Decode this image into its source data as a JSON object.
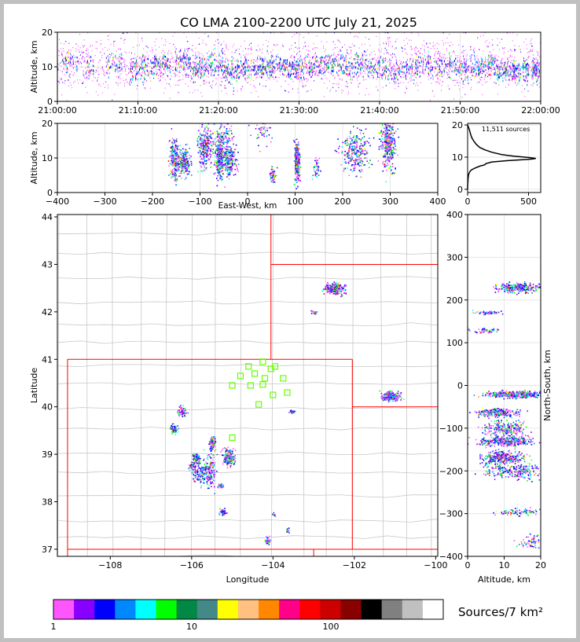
{
  "title": "CO LMA 2100-2200 UTC July 21, 2025",
  "colors": {
    "frame": "#c0c0c0",
    "border": "#ff0000",
    "county": "#c8c8c8",
    "grid": "#e6e6e6",
    "station": "#66ff00"
  },
  "chart_data": [
    {
      "id": "time_height",
      "type": "scatter",
      "xlabel": "",
      "ylabel": "Altitude, km",
      "x_ticks": [
        "21:00:00",
        "21:10:00",
        "21:20:00",
        "21:30:00",
        "21:40:00",
        "21:50:00",
        "22:00:00"
      ],
      "y_ticks": [
        0,
        10,
        20
      ],
      "xlim": [
        "21:00:00",
        "22:00:00"
      ],
      "ylim": [
        0,
        20
      ],
      "bursts": [
        {
          "t": 1.5,
          "z": 12,
          "w": 2,
          "n": 40
        },
        {
          "t": 4.0,
          "z": 10,
          "w": 1,
          "n": 30
        },
        {
          "t": 7.0,
          "z": 11,
          "w": 2,
          "n": 50
        },
        {
          "t": 9.5,
          "z": 9,
          "w": 1,
          "n": 40
        },
        {
          "t": 11.0,
          "z": 10,
          "w": 2,
          "n": 60
        },
        {
          "t": 13.0,
          "z": 11,
          "w": 2,
          "n": 70
        },
        {
          "t": 15.5,
          "z": 12,
          "w": 2,
          "n": 80
        },
        {
          "t": 17.5,
          "z": 10,
          "w": 2,
          "n": 80
        },
        {
          "t": 19.5,
          "z": 11,
          "w": 2,
          "n": 70
        },
        {
          "t": 21.5,
          "z": 9,
          "w": 2,
          "n": 90
        },
        {
          "t": 23.5,
          "z": 10,
          "w": 2,
          "n": 70
        },
        {
          "t": 25.5,
          "z": 10,
          "w": 2,
          "n": 80
        },
        {
          "t": 27.5,
          "z": 11,
          "w": 2,
          "n": 80
        },
        {
          "t": 29.5,
          "z": 10,
          "w": 2,
          "n": 90
        },
        {
          "t": 31.5,
          "z": 10,
          "w": 2,
          "n": 70
        },
        {
          "t": 33.5,
          "z": 11,
          "w": 2,
          "n": 70
        },
        {
          "t": 35.5,
          "z": 10,
          "w": 2,
          "n": 60
        },
        {
          "t": 37.5,
          "z": 11,
          "w": 2,
          "n": 60
        },
        {
          "t": 39.5,
          "z": 10,
          "w": 2,
          "n": 60
        },
        {
          "t": 41.5,
          "z": 9,
          "w": 2,
          "n": 50
        },
        {
          "t": 43.5,
          "z": 10,
          "w": 2,
          "n": 50
        },
        {
          "t": 45.5,
          "z": 11,
          "w": 2,
          "n": 60
        },
        {
          "t": 47.5,
          "z": 10,
          "w": 2,
          "n": 40
        },
        {
          "t": 49.5,
          "z": 10,
          "w": 2,
          "n": 60
        },
        {
          "t": 51.5,
          "z": 10,
          "w": 2,
          "n": 70
        },
        {
          "t": 53.5,
          "z": 11,
          "w": 2,
          "n": 80
        },
        {
          "t": 55.5,
          "z": 9,
          "w": 2,
          "n": 90
        },
        {
          "t": 57.5,
          "z": 9,
          "w": 2,
          "n": 100
        },
        {
          "t": 59.3,
          "z": 9,
          "w": 1,
          "n": 80
        }
      ]
    },
    {
      "id": "ew_height",
      "type": "scatter",
      "xlabel": "East-West, km",
      "ylabel": "Altitude, km",
      "x_ticks": [
        -400,
        -300,
        -200,
        -100,
        0,
        100,
        200,
        300,
        400
      ],
      "y_ticks": [
        0,
        10,
        20
      ],
      "xlim": [
        -400,
        400
      ],
      "ylim": [
        0,
        20
      ],
      "clusters": [
        {
          "x": -155,
          "z": 10,
          "sx": 5,
          "sz": 3,
          "n": 70
        },
        {
          "x": -135,
          "z": 9,
          "sx": 7,
          "sz": 2,
          "n": 70
        },
        {
          "x": -90,
          "z": 13,
          "sx": 8,
          "sz": 3,
          "n": 80
        },
        {
          "x": -60,
          "z": 10,
          "sx": 5,
          "sz": 3,
          "n": 90
        },
        {
          "x": -38,
          "z": 9,
          "sx": 7,
          "sz": 2,
          "n": 70
        },
        {
          "x": -50,
          "z": 16,
          "sx": 10,
          "sz": 3,
          "n": 40
        },
        {
          "x": 52,
          "z": 5,
          "sx": 3,
          "sz": 1,
          "n": 20
        },
        {
          "x": 103,
          "z": 9,
          "sx": 3,
          "sz": 3,
          "n": 80
        },
        {
          "x": 225,
          "z": 12,
          "sx": 15,
          "sz": 3,
          "n": 90
        },
        {
          "x": 295,
          "z": 14,
          "sx": 8,
          "sz": 4,
          "n": 110
        },
        {
          "x": 145,
          "z": 7,
          "sx": 4,
          "sz": 1.5,
          "n": 15
        },
        {
          "x": 30,
          "z": 18,
          "sx": 10,
          "sz": 2,
          "n": 15
        }
      ]
    },
    {
      "id": "altitude_histogram",
      "type": "line",
      "annotation": "11,511 sources",
      "x_ticks": [
        0,
        500
      ],
      "y_ticks": [
        0,
        10,
        20
      ],
      "xlim": [
        0,
        600
      ],
      "ylim": [
        -1,
        20.5
      ],
      "profile": [
        [
          0,
          20
        ],
        [
          5,
          19.5
        ],
        [
          15,
          18.5
        ],
        [
          25,
          17
        ],
        [
          35,
          16
        ],
        [
          50,
          15
        ],
        [
          70,
          14
        ],
        [
          100,
          13
        ],
        [
          140,
          12.3
        ],
        [
          200,
          11.5
        ],
        [
          280,
          10.8
        ],
        [
          380,
          10.3
        ],
        [
          500,
          9.9
        ],
        [
          560,
          9.6
        ],
        [
          530,
          9.4
        ],
        [
          450,
          9.2
        ],
        [
          320,
          8.9
        ],
        [
          200,
          8.5
        ],
        [
          150,
          8.0
        ],
        [
          140,
          7.6
        ],
        [
          100,
          7.2
        ],
        [
          60,
          6.6
        ],
        [
          30,
          6.0
        ],
        [
          15,
          5.3
        ],
        [
          8,
          4.5
        ],
        [
          4,
          3.5
        ],
        [
          2,
          2.0
        ],
        [
          0,
          1.0
        ],
        [
          0,
          0
        ]
      ]
    },
    {
      "id": "plan_view",
      "type": "scatter",
      "xlabel": "Longitude",
      "ylabel": "Latitude",
      "x_ticks": [
        -108,
        -106,
        -104,
        -102,
        -100
      ],
      "y_ticks": [
        37,
        38,
        39,
        40,
        41,
        42,
        43,
        44
      ],
      "xlim": [
        -109.3,
        -99.95
      ],
      "ylim": [
        36.85,
        44.05
      ],
      "stations": [
        [
          -104.6,
          40.85
        ],
        [
          -104.25,
          40.95
        ],
        [
          -103.95,
          40.85
        ],
        [
          -104.05,
          40.8
        ],
        [
          -104.8,
          40.65
        ],
        [
          -104.45,
          40.7
        ],
        [
          -104.2,
          40.6
        ],
        [
          -103.75,
          40.6
        ],
        [
          -105.0,
          40.45
        ],
        [
          -104.55,
          40.45
        ],
        [
          -104.25,
          40.47
        ],
        [
          -103.65,
          40.3
        ],
        [
          -104.0,
          40.25
        ],
        [
          -104.35,
          40.05
        ],
        [
          -105.0,
          39.35
        ]
      ],
      "clusters": [
        {
          "lon": -102.5,
          "lat": 42.5,
          "sx": 0.12,
          "sy": 0.06,
          "n": 120
        },
        {
          "lon": -103.0,
          "lat": 42.0,
          "sx": 0.05,
          "sy": 0.02,
          "n": 10
        },
        {
          "lon": -101.1,
          "lat": 40.23,
          "sx": 0.12,
          "sy": 0.05,
          "n": 110
        },
        {
          "lon": -103.55,
          "lat": 39.9,
          "sx": 0.03,
          "sy": 0.02,
          "n": 15
        },
        {
          "lon": -106.25,
          "lat": 39.9,
          "sx": 0.05,
          "sy": 0.05,
          "n": 30
        },
        {
          "lon": -106.45,
          "lat": 39.55,
          "sx": 0.05,
          "sy": 0.05,
          "n": 30
        },
        {
          "lon": -105.5,
          "lat": 39.25,
          "sx": 0.04,
          "sy": 0.08,
          "n": 40
        },
        {
          "lon": -105.55,
          "lat": 38.7,
          "sx": 0.08,
          "sy": 0.2,
          "n": 70
        },
        {
          "lon": -105.1,
          "lat": 38.95,
          "sx": 0.08,
          "sy": 0.1,
          "n": 80
        },
        {
          "lon": -105.9,
          "lat": 38.9,
          "sx": 0.05,
          "sy": 0.06,
          "n": 40
        },
        {
          "lon": -105.8,
          "lat": 38.6,
          "sx": 0.1,
          "sy": 0.1,
          "n": 50
        },
        {
          "lon": -106.0,
          "lat": 38.75,
          "sx": 0.04,
          "sy": 0.03,
          "n": 15
        },
        {
          "lon": -105.3,
          "lat": 38.35,
          "sx": 0.04,
          "sy": 0.03,
          "n": 15
        },
        {
          "lon": -105.25,
          "lat": 37.8,
          "sx": 0.04,
          "sy": 0.04,
          "n": 20
        },
        {
          "lon": -104.15,
          "lat": 37.2,
          "sx": 0.04,
          "sy": 0.04,
          "n": 15
        },
        {
          "lon": -103.65,
          "lat": 37.4,
          "sx": 0.02,
          "sy": 0.03,
          "n": 8
        },
        {
          "lon": -104.0,
          "lat": 37.75,
          "sx": 0.02,
          "sy": 0.02,
          "n": 5
        }
      ]
    },
    {
      "id": "ns_height",
      "type": "scatter",
      "xlabel": "Altitude, km",
      "ylabel": "North-South, km",
      "x_ticks": [
        0,
        10,
        20
      ],
      "y_ticks": [
        -400,
        -300,
        -200,
        -100,
        0,
        100,
        200,
        300,
        400
      ],
      "xlim": [
        0,
        20
      ],
      "ylim": [
        -400,
        400
      ],
      "clusters": [
        {
          "z": 14,
          "y": 230,
          "sz": 3,
          "sy": 6,
          "n": 90
        },
        {
          "z": 6,
          "y": 172,
          "sz": 2,
          "sy": 2,
          "n": 15
        },
        {
          "z": 5,
          "y": 130,
          "sz": 2,
          "sy": 3,
          "n": 15
        },
        {
          "z": 13,
          "y": -20,
          "sz": 4,
          "sy": 4,
          "n": 150
        },
        {
          "z": 8,
          "y": -63,
          "sz": 3,
          "sy": 5,
          "n": 80
        },
        {
          "z": 10,
          "y": -100,
          "sz": 3,
          "sy": 10,
          "n": 80
        },
        {
          "z": 10,
          "y": -130,
          "sz": 4,
          "sy": 6,
          "n": 110
        },
        {
          "z": 9,
          "y": -168,
          "sz": 3,
          "sy": 8,
          "n": 110
        },
        {
          "z": 12,
          "y": -200,
          "sz": 4,
          "sy": 10,
          "n": 80
        },
        {
          "z": 14,
          "y": -295,
          "sz": 3,
          "sy": 4,
          "n": 25
        },
        {
          "z": 18,
          "y": -365,
          "sz": 2,
          "sy": 8,
          "n": 20
        }
      ]
    }
  ],
  "colorbar": {
    "label": "Sources/7 km²",
    "tick_labels": [
      "1",
      "10",
      "100"
    ],
    "colors": [
      "#ff55ff",
      "#8800ff",
      "#0000ff",
      "#0088ff",
      "#00ffff",
      "#00ff00",
      "#008844",
      "#448888",
      "#ffff00",
      "#ffc080",
      "#ff8800",
      "#ff0088",
      "#ff0000",
      "#cc0000",
      "#880000",
      "#000000",
      "#808080",
      "#c0c0c0",
      "#ffffff"
    ]
  }
}
